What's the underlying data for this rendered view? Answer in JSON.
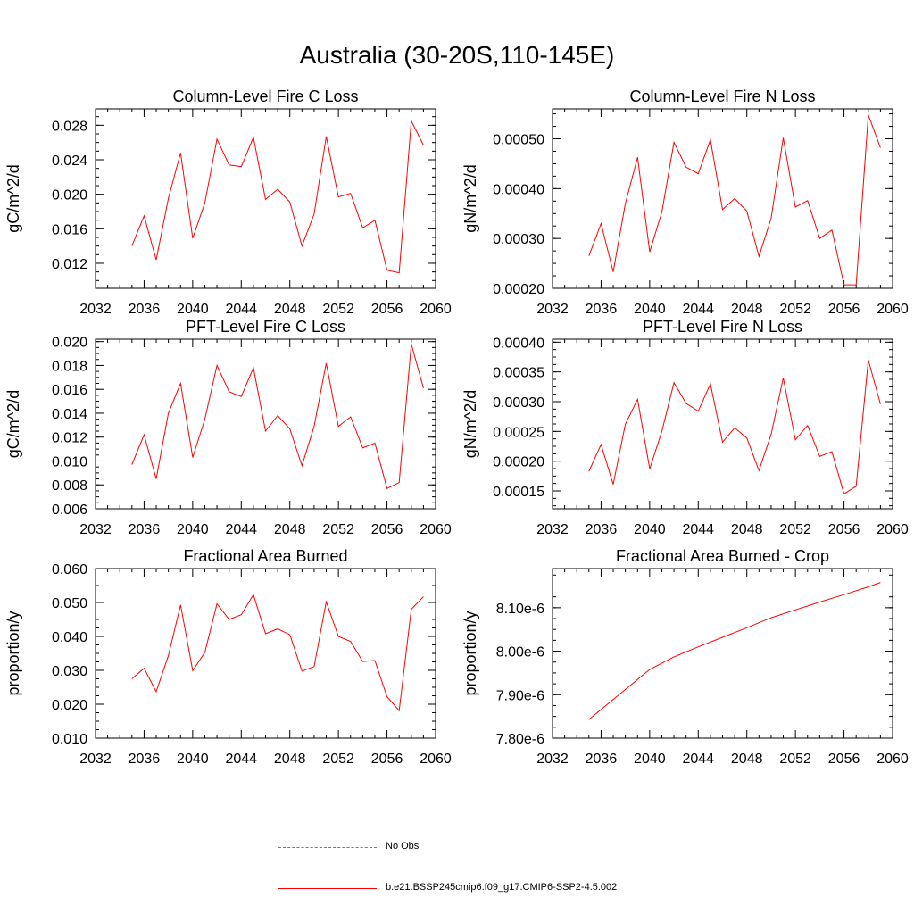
{
  "figure": {
    "title": "Australia (30-20S,110-145E)"
  },
  "colors": {
    "model": "#ff0000",
    "obs": "#6a6ad0",
    "axis": "#000000"
  },
  "legend": {
    "obs_label": "No Obs",
    "model_label": "b.e21.BSSP245cmip6.f09_g17.CMIP6-SSP2-4.5.002"
  },
  "chart_data": [
    {
      "type": "line",
      "title": "Column-Level Fire C Loss",
      "xlabel": "",
      "ylabel": "gC/m^2/d",
      "xlim": [
        2032,
        2060
      ],
      "ylim": [
        0.0091,
        0.0299
      ],
      "x_ticks": [
        "2032",
        "2036",
        "2040",
        "2044",
        "2048",
        "2052",
        "2056",
        "2060"
      ],
      "y_ticks": [
        0.012,
        0.016,
        0.02,
        0.024,
        0.028
      ],
      "y_tick_labels": [
        "0.012",
        "0.016",
        "0.020",
        "0.024",
        "0.028"
      ],
      "series": [
        {
          "name": "b.e21.BSSP245cmip6.f09_g17.CMIP6-SSP2-4.5.002",
          "x": [
            2035,
            2036,
            2037,
            2038,
            2039,
            2040,
            2041,
            2042,
            2043,
            2044,
            2045,
            2046,
            2047,
            2048,
            2049,
            2050,
            2051,
            2052,
            2053,
            2054,
            2055,
            2056,
            2057,
            2058,
            2059
          ],
          "values": [
            0.014,
            0.0175,
            0.0124,
            0.0195,
            0.0248,
            0.0149,
            0.019,
            0.0264,
            0.0234,
            0.0232,
            0.0266,
            0.0194,
            0.0206,
            0.0191,
            0.014,
            0.0177,
            0.0267,
            0.0197,
            0.0201,
            0.0161,
            0.017,
            0.0112,
            0.0109,
            0.0285,
            0.0257
          ]
        }
      ]
    },
    {
      "type": "line",
      "title": "Column-Level Fire N Loss",
      "xlabel": "",
      "ylabel": "gN/m^2/d",
      "xlim": [
        2032,
        2060
      ],
      "ylim": [
        0.0002,
        0.00056
      ],
      "x_ticks": [
        "2032",
        "2036",
        "2040",
        "2044",
        "2048",
        "2052",
        "2056",
        "2060"
      ],
      "y_ticks": [
        0.0002,
        0.0003,
        0.0004,
        0.0005
      ],
      "y_tick_labels": [
        "0.00020",
        "0.00030",
        "0.00040",
        "0.00050"
      ],
      "series": [
        {
          "name": "b.e21.BSSP245cmip6.f09_g17.CMIP6-SSP2-4.5.002",
          "x": [
            2035,
            2036,
            2037,
            2038,
            2039,
            2040,
            2041,
            2042,
            2043,
            2044,
            2045,
            2046,
            2047,
            2048,
            2049,
            2050,
            2051,
            2052,
            2053,
            2054,
            2055,
            2056,
            2057,
            2058,
            2059
          ],
          "values": [
            0.000265,
            0.00033,
            0.000233,
            0.00037,
            0.000463,
            0.000273,
            0.000353,
            0.000493,
            0.000443,
            0.00043,
            0.000498,
            0.000358,
            0.00038,
            0.000355,
            0.000264,
            0.00034,
            0.000502,
            0.000363,
            0.000376,
            0.0003,
            0.000317,
            0.000207,
            0.000207,
            0.000548,
            0.000482
          ]
        }
      ]
    },
    {
      "type": "line",
      "title": "PFT-Level Fire C Loss",
      "xlabel": "",
      "ylabel": "gC/m^2/d",
      "xlim": [
        2032,
        2060
      ],
      "ylim": [
        0.006,
        0.0202
      ],
      "x_ticks": [
        "2032",
        "2036",
        "2040",
        "2044",
        "2048",
        "2052",
        "2056",
        "2060"
      ],
      "y_ticks": [
        0.006,
        0.008,
        0.01,
        0.012,
        0.014,
        0.016,
        0.018,
        0.02
      ],
      "y_tick_labels": [
        "0.006",
        "0.008",
        "0.010",
        "0.012",
        "0.014",
        "0.016",
        "0.018",
        "0.020"
      ],
      "series": [
        {
          "name": "b.e21.BSSP245cmip6.f09_g17.CMIP6-SSP2-4.5.002",
          "x": [
            2035,
            2036,
            2037,
            2038,
            2039,
            2040,
            2041,
            2042,
            2043,
            2044,
            2045,
            2046,
            2047,
            2048,
            2049,
            2050,
            2051,
            2052,
            2053,
            2054,
            2055,
            2056,
            2057,
            2058,
            2059
          ],
          "values": [
            0.0097,
            0.0122,
            0.0085,
            0.014,
            0.0165,
            0.0103,
            0.0135,
            0.018,
            0.0158,
            0.0154,
            0.0178,
            0.0125,
            0.0138,
            0.0127,
            0.0096,
            0.0129,
            0.0182,
            0.0129,
            0.0137,
            0.0111,
            0.0115,
            0.0077,
            0.0082,
            0.0198,
            0.0161
          ]
        }
      ]
    },
    {
      "type": "line",
      "title": "PFT-Level Fire N Loss",
      "xlabel": "",
      "ylabel": "gN/m^2/d",
      "xlim": [
        2032,
        2060
      ],
      "ylim": [
        0.00012,
        0.000405
      ],
      "x_ticks": [
        "2032",
        "2036",
        "2040",
        "2044",
        "2048",
        "2052",
        "2056",
        "2060"
      ],
      "y_ticks": [
        0.00015,
        0.0002,
        0.00025,
        0.0003,
        0.00035,
        0.0004
      ],
      "y_tick_labels": [
        "0.00015",
        "0.00020",
        "0.00025",
        "0.00030",
        "0.00035",
        "0.00040"
      ],
      "series": [
        {
          "name": "b.e21.BSSP245cmip6.f09_g17.CMIP6-SSP2-4.5.002",
          "x": [
            2035,
            2036,
            2037,
            2038,
            2039,
            2040,
            2041,
            2042,
            2043,
            2044,
            2045,
            2046,
            2047,
            2048,
            2049,
            2050,
            2051,
            2052,
            2053,
            2054,
            2055,
            2056,
            2057,
            2058,
            2059
          ],
          "values": [
            0.000183,
            0.000228,
            0.000161,
            0.000262,
            0.000304,
            0.000187,
            0.00025,
            0.000332,
            0.000297,
            0.000284,
            0.00033,
            0.000232,
            0.000256,
            0.000239,
            0.000184,
            0.000245,
            0.00034,
            0.000236,
            0.00026,
            0.000208,
            0.000216,
            0.000145,
            0.000158,
            0.00037,
            0.000296
          ]
        }
      ]
    },
    {
      "type": "line",
      "title": "Fractional Area Burned",
      "xlabel": "",
      "ylabel": "proportion/y",
      "xlim": [
        2032,
        2060
      ],
      "ylim": [
        0.01,
        0.06
      ],
      "x_ticks": [
        "2032",
        "2036",
        "2040",
        "2044",
        "2048",
        "2052",
        "2056",
        "2060"
      ],
      "y_ticks": [
        0.01,
        0.02,
        0.03,
        0.04,
        0.05,
        0.06
      ],
      "y_tick_labels": [
        "0.010",
        "0.020",
        "0.030",
        "0.040",
        "0.050",
        "0.060"
      ],
      "series": [
        {
          "name": "b.e21.BSSP245cmip6.f09_g17.CMIP6-SSP2-4.5.002",
          "x": [
            2035,
            2036,
            2037,
            2038,
            2039,
            2040,
            2041,
            2042,
            2043,
            2044,
            2045,
            2046,
            2047,
            2048,
            2049,
            2050,
            2051,
            2052,
            2053,
            2054,
            2055,
            2056,
            2057,
            2058,
            2059
          ],
          "values": [
            0.0275,
            0.0306,
            0.0237,
            0.0343,
            0.0493,
            0.0299,
            0.0353,
            0.0496,
            0.045,
            0.0464,
            0.0523,
            0.0408,
            0.0422,
            0.0405,
            0.0298,
            0.0311,
            0.0502,
            0.04,
            0.0385,
            0.0326,
            0.0329,
            0.0222,
            0.0181,
            0.048,
            0.0517
          ]
        }
      ]
    },
    {
      "type": "line",
      "title": "Fractional Area Burned - Crop",
      "xlabel": "",
      "ylabel": "proportion/y",
      "xlim": [
        2032,
        2060
      ],
      "ylim": [
        7.8e-06,
        8.19e-06
      ],
      "x_ticks": [
        "2032",
        "2036",
        "2040",
        "2044",
        "2048",
        "2052",
        "2056",
        "2060"
      ],
      "y_ticks": [
        7.8e-06,
        7.9e-06,
        8e-06,
        8.1e-06
      ],
      "y_tick_labels": [
        "7.80e-6",
        "7.90e-6",
        "8.00e-6",
        "8.10e-6"
      ],
      "series": [
        {
          "name": "b.e21.BSSP245cmip6.f09_g17.CMIP6-SSP2-4.5.002",
          "x": [
            2035,
            2040,
            2042,
            2044,
            2046,
            2048,
            2050,
            2052,
            2054,
            2056,
            2058,
            2059
          ],
          "values": [
            7.843e-06,
            7.958e-06,
            7.987e-06,
            8.01e-06,
            8.032e-06,
            8.054e-06,
            8.077e-06,
            8.095e-06,
            8.113e-06,
            8.13e-06,
            8.148e-06,
            8.158e-06
          ]
        }
      ]
    }
  ]
}
